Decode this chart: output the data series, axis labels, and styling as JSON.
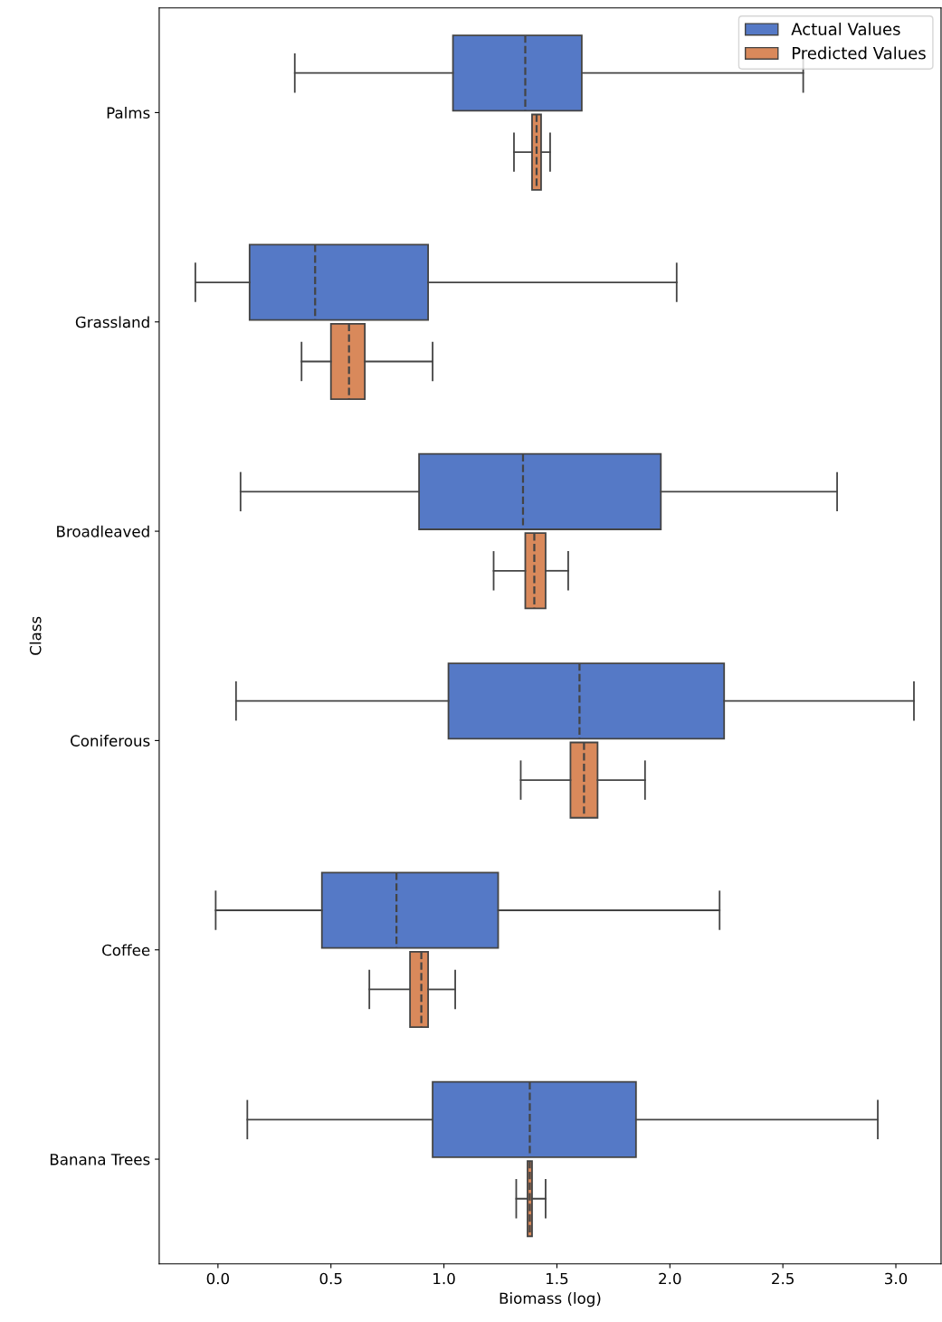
{
  "chart_data": {
    "type": "box",
    "orientation": "horizontal",
    "xlabel": "Biomass (log)",
    "ylabel": "Class",
    "categories": [
      "Palms",
      "Grassland",
      "Broadleaved",
      "Coniferous",
      "Coffee",
      "Banana Trees"
    ],
    "series": [
      {
        "name": "Actual Values",
        "color": "#5579c6",
        "boxes": [
          {
            "low": 0.34,
            "q1": 1.04,
            "median": 1.36,
            "q3": 1.61,
            "high": 2.59
          },
          {
            "low": -0.1,
            "q1": 0.14,
            "median": 0.43,
            "q3": 0.93,
            "high": 2.03
          },
          {
            "low": 0.1,
            "q1": 0.89,
            "median": 1.35,
            "q3": 1.96,
            "high": 2.74
          },
          {
            "low": 0.08,
            "q1": 1.02,
            "median": 1.6,
            "q3": 2.24,
            "high": 3.08
          },
          {
            "low": -0.01,
            "q1": 0.46,
            "median": 0.79,
            "q3": 1.24,
            "high": 2.22
          },
          {
            "low": 0.13,
            "q1": 0.95,
            "median": 1.38,
            "q3": 1.85,
            "high": 2.92
          }
        ]
      },
      {
        "name": "Predicted Values",
        "color": "#d9895b",
        "boxes": [
          {
            "low": 1.31,
            "q1": 1.39,
            "median": 1.41,
            "q3": 1.43,
            "high": 1.47
          },
          {
            "low": 0.37,
            "q1": 0.5,
            "median": 0.58,
            "q3": 0.65,
            "high": 0.95
          },
          {
            "low": 1.22,
            "q1": 1.36,
            "median": 1.4,
            "q3": 1.45,
            "high": 1.55
          },
          {
            "low": 1.34,
            "q1": 1.56,
            "median": 1.62,
            "q3": 1.68,
            "high": 1.89
          },
          {
            "low": 0.67,
            "q1": 0.85,
            "median": 0.9,
            "q3": 0.93,
            "high": 1.05
          },
          {
            "low": 1.32,
            "q1": 1.37,
            "median": 1.38,
            "q3": 1.39,
            "high": 1.45
          }
        ]
      }
    ],
    "xlim": [
      -0.26,
      3.2
    ],
    "xticks": [
      {
        "value": 0,
        "label": "0.0"
      },
      0.5,
      {
        "value": 1,
        "label": "1.0"
      },
      1.5,
      {
        "value": 2,
        "label": "2.0"
      },
      2.5,
      {
        "value": 3,
        "label": "3.0"
      }
    ],
    "legend": "top right",
    "grid": false
  }
}
